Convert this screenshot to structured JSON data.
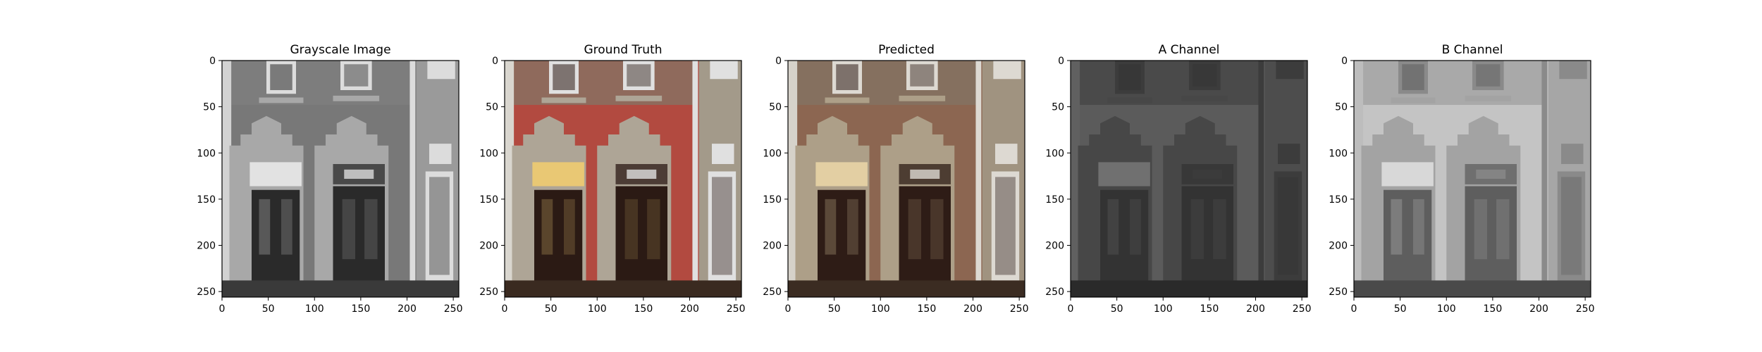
{
  "figure": {
    "background": "#ffffff"
  },
  "chart_data": [
    {
      "type": "image",
      "title": "Grayscale Image",
      "xlim": [
        0,
        256
      ],
      "ylim": [
        0,
        256
      ],
      "y_inverted": true,
      "xticks": [
        0,
        50,
        100,
        150,
        200,
        250
      ],
      "yticks": [
        0,
        50,
        100,
        150,
        200,
        250
      ],
      "grid": false,
      "palette": "gray",
      "colors": {
        "sky": "#d2d2d2",
        "upper_wall": "#7d7d7d",
        "brick": "#787878",
        "stone": "#a8a8a8",
        "door": "#2a2a2a",
        "light": "#e2e2e2",
        "window": "#dcdcdc",
        "side_wall": "#9a9a9a",
        "ground": "#3a3a3a"
      }
    },
    {
      "type": "image",
      "title": "Ground Truth",
      "xlim": [
        0,
        256
      ],
      "ylim": [
        0,
        256
      ],
      "y_inverted": true,
      "xticks": [
        0,
        50,
        100,
        150,
        200,
        250
      ],
      "yticks": [
        0,
        50,
        100,
        150,
        200,
        250
      ],
      "grid": false,
      "palette": "color",
      "colors": {
        "sky": "#d9d6cf",
        "upper_wall": "#8f6a5c",
        "brick": "#b24a40",
        "stone": "#aea596",
        "door": "#2b1a14",
        "light": "#e9c874",
        "window": "#e0e0e0",
        "side_wall": "#a39a8a",
        "ground": "#3a2a20"
      }
    },
    {
      "type": "image",
      "title": "Predicted",
      "xlim": [
        0,
        256
      ],
      "ylim": [
        0,
        256
      ],
      "y_inverted": true,
      "xticks": [
        0,
        50,
        100,
        150,
        200,
        250
      ],
      "yticks": [
        0,
        50,
        100,
        150,
        200,
        250
      ],
      "grid": false,
      "palette": "color",
      "colors": {
        "sky": "#d6d2ca",
        "upper_wall": "#85705f",
        "brick": "#8c6651",
        "stone": "#ad9f88",
        "door": "#2e1c16",
        "light": "#e3cfa3",
        "window": "#ddd9d2",
        "side_wall": "#a09380",
        "ground": "#3b2c22"
      }
    },
    {
      "type": "image",
      "title": "A Channel",
      "xlim": [
        0,
        256
      ],
      "ylim": [
        0,
        256
      ],
      "y_inverted": true,
      "xticks": [
        0,
        50,
        100,
        150,
        200,
        250
      ],
      "yticks": [
        0,
        50,
        100,
        150,
        200,
        250
      ],
      "grid": false,
      "palette": "gray",
      "colors": {
        "sky": "#606060",
        "upper_wall": "#4a4a4a",
        "brick": "#5b5b5b",
        "stone": "#474747",
        "door": "#333333",
        "light": "#707070",
        "window": "#3c3c3c",
        "side_wall": "#4d4d4d",
        "ground": "#2a2a2a"
      }
    },
    {
      "type": "image",
      "title": "B Channel",
      "xlim": [
        0,
        256
      ],
      "ylim": [
        0,
        256
      ],
      "y_inverted": true,
      "xticks": [
        0,
        50,
        100,
        150,
        200,
        250
      ],
      "yticks": [
        0,
        50,
        100,
        150,
        200,
        250
      ],
      "grid": false,
      "palette": "gray",
      "colors": {
        "sky": "#bdbdbd",
        "upper_wall": "#a9a9a9",
        "brick": "#c4c4c4",
        "stone": "#a3a3a3",
        "door": "#5e5e5e",
        "light": "#d8d8d8",
        "window": "#8a8a8a",
        "side_wall": "#a6a6a6",
        "ground": "#4a4a4a"
      }
    }
  ]
}
